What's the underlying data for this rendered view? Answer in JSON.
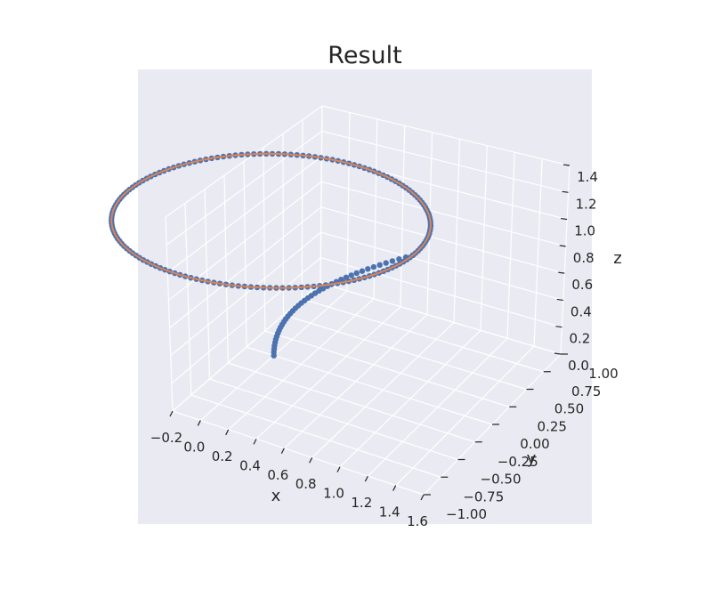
{
  "chart_data": {
    "type": "scatter",
    "projection": "3d",
    "title": "Result",
    "xlabel": "x",
    "ylabel": "y",
    "zlabel": "z",
    "xlim": [
      -0.2,
      1.6
    ],
    "ylim": [
      -1.0,
      1.0
    ],
    "zlim": [
      0.0,
      1.4
    ],
    "xticks": [
      "−0.2",
      "0.0",
      "0.2",
      "0.4",
      "0.6",
      "0.8",
      "1.0",
      "1.2",
      "1.4",
      "1.6"
    ],
    "yticks": [
      "−1.00",
      "−0.75",
      "−0.50",
      "−0.25",
      "0.00",
      "0.25",
      "0.50",
      "0.75",
      "1.00"
    ],
    "zticks": [
      "0.0",
      "0.2",
      "0.4",
      "0.6",
      "0.8",
      "1.0",
      "1.2",
      "1.4"
    ],
    "grid": true,
    "series": [
      {
        "kind": "scatter",
        "color": "#4c72b0",
        "description": "takeoff climb from the origin, then a circle of radius 1 at z = 1",
        "climb": {
          "x_start": 0.0,
          "y_start": 0.0,
          "z_start": 0.0,
          "x_end": 1.0,
          "y_end": 0.0,
          "z_end": 1.0
        },
        "circle": {
          "center": [
            0.0,
            0.0
          ],
          "radius": 1.0,
          "z": 1.0
        }
      },
      {
        "kind": "line",
        "color": "#dd8452",
        "description": "reference circle of radius 1 at z = 1",
        "circle": {
          "center": [
            0.0,
            0.0
          ],
          "radius": 1.0,
          "z": 1.0
        }
      }
    ],
    "colors": {
      "pane": "#eaeaf2",
      "grid": "#ffffff",
      "text": "#262626"
    }
  }
}
